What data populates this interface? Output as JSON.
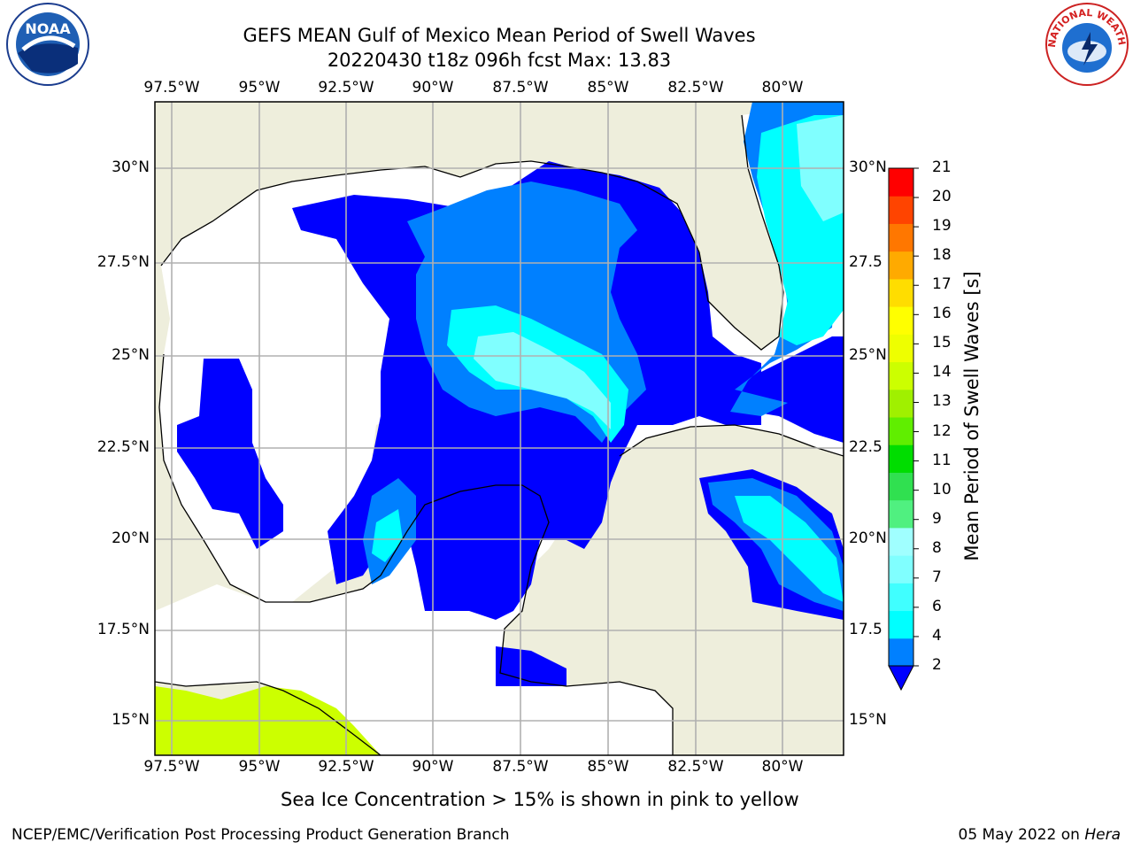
{
  "header": {
    "title_line1": "GEFS MEAN Gulf of Mexico Mean Period of Swell Waves",
    "title_line2": "20220430 t18z 096h fcst   Max: 13.83"
  },
  "axes": {
    "lon_labels": [
      "97.5°W",
      "95°W",
      "92.5°W",
      "90°W",
      "87.5°W",
      "85°W",
      "82.5°W",
      "80°W"
    ],
    "lat_labels": [
      "30°N",
      "27.5°N",
      "25°N",
      "22.5°N",
      "20°N",
      "17.5°N",
      "15°N"
    ],
    "lat_labels_right": [
      "30°N",
      "27.5",
      "25°N",
      "22.5",
      "20°N",
      "17.5",
      "15°N"
    ]
  },
  "colorbar": {
    "title": "Mean Period of Swell Waves [s]",
    "ticks": [
      "2",
      "4",
      "6",
      "7",
      "8",
      "9",
      "10",
      "11",
      "12",
      "13",
      "14",
      "15",
      "16",
      "17",
      "18",
      "19",
      "20",
      "21"
    ],
    "colors": [
      "#0000ff",
      "#0080ff",
      "#00ffff",
      "#40ffff",
      "#80ffff",
      "#a0ffff",
      "#50f080",
      "#30e050",
      "#00dd00",
      "#60ee00",
      "#a0f000",
      "#ccff00",
      "#eeff00",
      "#ffff00",
      "#ffdd00",
      "#ffaa00",
      "#ff7700",
      "#ff4400",
      "#ff0000"
    ]
  },
  "map_colors": {
    "land": "#eeeedc",
    "ocean": "#ffffff",
    "grid": "#b0b0b0",
    "coast": "#000000",
    "ice": "#ccff00"
  },
  "logos": {
    "noaa_text": "NOAA",
    "nws_text": "NATIONAL WEATHER SERVICE"
  },
  "notes": {
    "ice_note": "Sea Ice Concentration > 15% is shown in pink to yellow",
    "credit": "NCEP/EMC/Verification Post Processing Product Generation Branch",
    "date": "05 May 2022 on",
    "machine": "Hera"
  }
}
